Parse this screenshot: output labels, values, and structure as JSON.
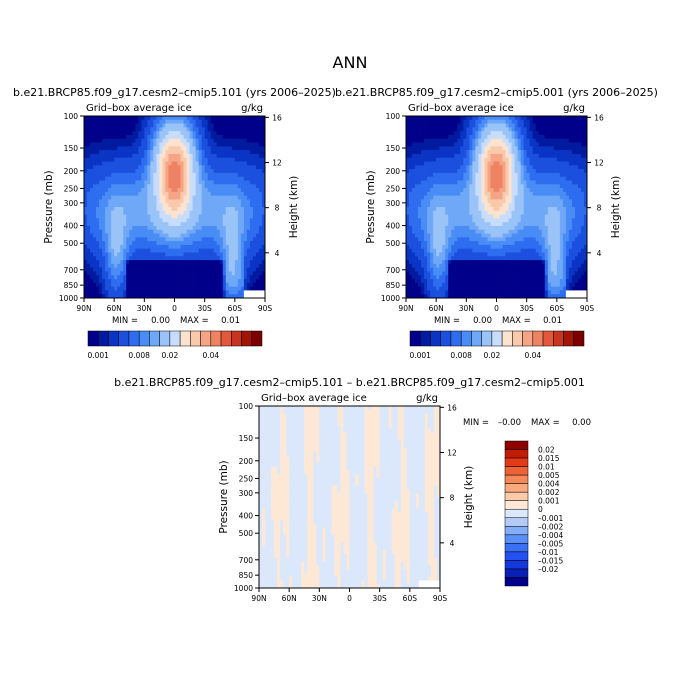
{
  "page_title": "ANN",
  "colors": {
    "seq_ramp": [
      "#00008a",
      "#001aa0",
      "#0a34c4",
      "#1a50dd",
      "#2e6cf0",
      "#4a8cf5",
      "#6ea8f7",
      "#9ac4f8",
      "#c8dcfb",
      "#fbe3cf",
      "#f9c9ac",
      "#f5a586",
      "#ef8262",
      "#e3583c",
      "#c73420",
      "#a11408",
      "#7a0000"
    ],
    "diff_ramp": [
      "#00008a",
      "#0a1fb5",
      "#1438dd",
      "#2352ef",
      "#3970f5",
      "#5a8ff7",
      "#85aef8",
      "#b4cbf8",
      "#dbe8fb",
      "#fde8d6",
      "#fccaa8",
      "#f9a97d",
      "#f58858",
      "#ef6236",
      "#e33b17",
      "#c21c07",
      "#8e0000"
    ]
  },
  "chart_data": [
    {
      "type": "heatmap",
      "panel": "top-left",
      "title": "b.e21.BRCP85.f09_g17.cesm2–cmip5.101 (yrs 2006–2025)",
      "left_label": "Grid–box average ice",
      "right_label": "g/kg",
      "ylabel": "Pressure (mb)",
      "y2label": "Height (km)",
      "x_ticks": [
        "90N",
        "60N",
        "30N",
        "0",
        "30S",
        "60S",
        "90S"
      ],
      "y_ticks": [
        "100",
        "150",
        "200",
        "250",
        "300",
        "400",
        "500",
        "700",
        "850",
        "1000"
      ],
      "y2_ticks": [
        "16",
        "12",
        "8",
        "4"
      ],
      "stats": {
        "min_label": "MIN =",
        "min": "0.00",
        "max_label": "MAX =",
        "max": "0.01"
      },
      "colorbar": {
        "orientation": "horizontal",
        "labels": [
          "0.001",
          "0.008",
          "0.02",
          "0.04"
        ]
      }
    },
    {
      "type": "heatmap",
      "panel": "top-right",
      "title": "b.e21.BRCP85.f09_g17.cesm2–cmip5.001 (yrs 2006–2025)",
      "left_label": "Grid–box average ice",
      "right_label": "g/kg",
      "ylabel": "Pressure (mb)",
      "y2label": "Height (km)",
      "x_ticks": [
        "90N",
        "60N",
        "30N",
        "0",
        "30S",
        "60S",
        "90S"
      ],
      "y_ticks": [
        "100",
        "150",
        "200",
        "250",
        "300",
        "400",
        "500",
        "700",
        "850",
        "1000"
      ],
      "y2_ticks": [
        "16",
        "12",
        "8",
        "4"
      ],
      "stats": {
        "min_label": "MIN =",
        "min": "0.00",
        "max_label": "MAX =",
        "max": "0.01"
      },
      "colorbar": {
        "orientation": "horizontal",
        "labels": [
          "0.001",
          "0.008",
          "0.02",
          "0.04"
        ]
      }
    },
    {
      "type": "heatmap",
      "panel": "bottom-difference",
      "title": "b.e21.BRCP85.f09_g17.cesm2–cmip5.101 – b.e21.BRCP85.f09_g17.cesm2–cmip5.001",
      "left_label": "Grid–box average ice",
      "right_label": "g/kg",
      "ylabel": "Pressure (mb)",
      "y2label": "Height (km)",
      "x_ticks": [
        "90N",
        "60N",
        "30N",
        "0",
        "30S",
        "60S",
        "90S"
      ],
      "y_ticks": [
        "100",
        "150",
        "200",
        "250",
        "300",
        "400",
        "500",
        "700",
        "850",
        "1000"
      ],
      "y2_ticks": [
        "16",
        "12",
        "8",
        "4"
      ],
      "stats": {
        "min_label": "MIN =",
        "min": "–0.00",
        "max_label": "MAX =",
        "max": "0.00"
      },
      "colorbar": {
        "orientation": "vertical",
        "labels": [
          "0.02",
          "0.015",
          "0.01",
          "0.005",
          "0.004",
          "0.002",
          "0.001",
          "0",
          "–0.001",
          "–0.002",
          "–0.004",
          "–0.005",
          "–0.01",
          "–0.015",
          "–0.02"
        ]
      }
    }
  ]
}
